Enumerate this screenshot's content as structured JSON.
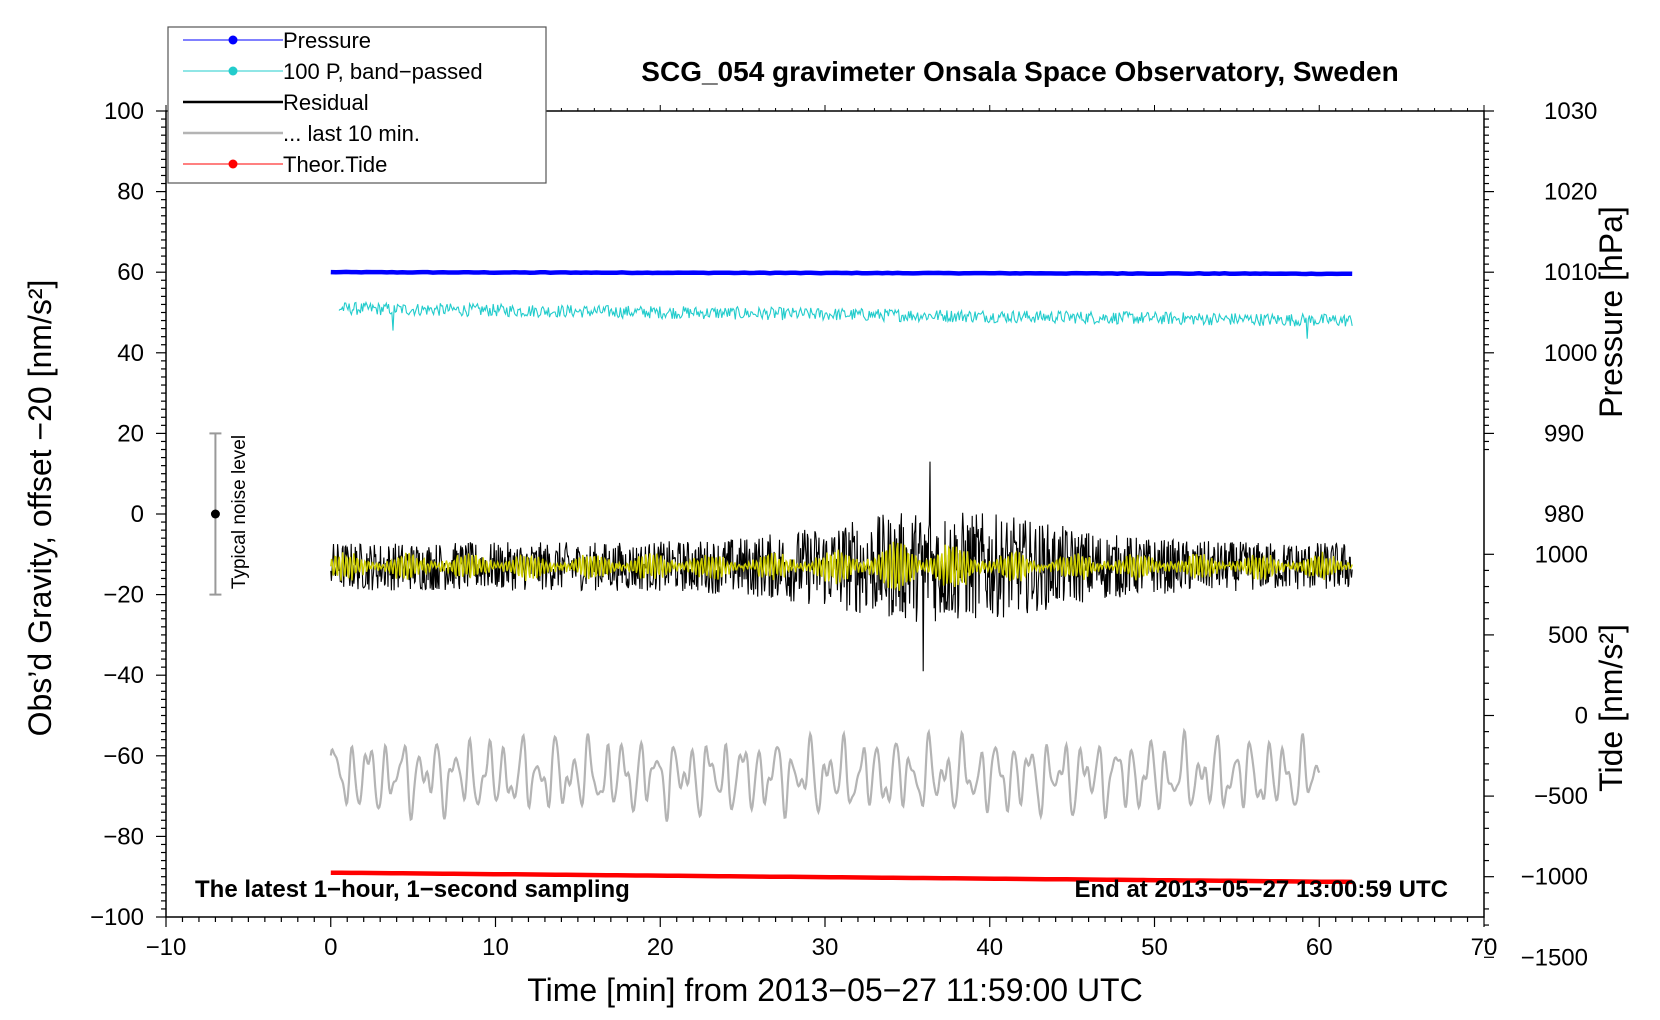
{
  "chart_data": {
    "type": "line",
    "title": "SCG_054 gravimeter Onsala Space Observatory, Sweden",
    "xlabel": "Time [min] from 2013−05−27 11:59:00 UTC",
    "ylabel_left": "Obs’d Gravity, offset −20 [nm/s²]",
    "ylabel_right_pressure": "Pressure [hPa]",
    "ylabel_right_tide": "Tide [nm/s²]",
    "xlim": [
      -10,
      70
    ],
    "ylim_left": [
      -100,
      100
    ],
    "x_ticks": [
      "−10",
      "0",
      "10",
      "20",
      "30",
      "40",
      "50",
      "60",
      "70"
    ],
    "y_ticks_left": [
      "100",
      "80",
      "60",
      "40",
      "20",
      "0",
      "−20",
      "−40",
      "−60",
      "−80",
      "−100"
    ],
    "y_ticks_pressure": [
      "1030",
      "1020",
      "1010",
      "1000",
      "990",
      "980"
    ],
    "y_ticks_tide": [
      "1000",
      "500",
      "0",
      "−500",
      "−1000",
      "−1500"
    ],
    "pressure_axis": {
      "left_value_at_1000": 40,
      "left_units_per_hPa": 2
    },
    "tide_axis": {
      "left_value_at_0": -50,
      "left_units_per_nms2": 0.04
    },
    "legend": [
      "Pressure",
      "100 P, band−passed",
      "Residual",
      "... last 10 min.",
      "Theor.Tide"
    ],
    "annotations": {
      "bottom_left": "The latest 1−hour, 1−second sampling",
      "bottom_right": "End at 2013−05−27 13:00:59 UTC",
      "noise_label": "Typical noise level"
    },
    "noise_bar": {
      "x": -7,
      "center": 0,
      "low": -20,
      "high": 20
    },
    "series": [
      {
        "name": "Pressure",
        "color": "#0000ff",
        "x_range": [
          0,
          62
        ],
        "level_start": 60,
        "level_end": 59.6
      },
      {
        "name": "100 P, band−passed",
        "color": "#22cccc",
        "x_range": [
          0.5,
          62
        ],
        "mean_start": 51,
        "mean_end": 48,
        "amplitude": 1.6
      },
      {
        "name": "Residual",
        "color": "#000000",
        "x_range": [
          0,
          62
        ],
        "mean": -13,
        "amplitude_min": 6,
        "amplitude_max": 14,
        "peak_at": 37,
        "min": -39,
        "max": 13
      },
      {
        "name": "Residual (smoothed)",
        "color": "#cccc00",
        "x_range": [
          0,
          62
        ],
        "mean": -13,
        "amplitude": 3
      },
      {
        "name": "... last 10 min.",
        "color": "#b4b4b4",
        "x_range": [
          0,
          60
        ],
        "mean": -65,
        "min": -77,
        "max": -45
      },
      {
        "name": "Theor.Tide",
        "color": "#ff0000",
        "x_range": [
          0,
          62
        ],
        "level_start": -89,
        "level_end": -91.3
      }
    ]
  }
}
